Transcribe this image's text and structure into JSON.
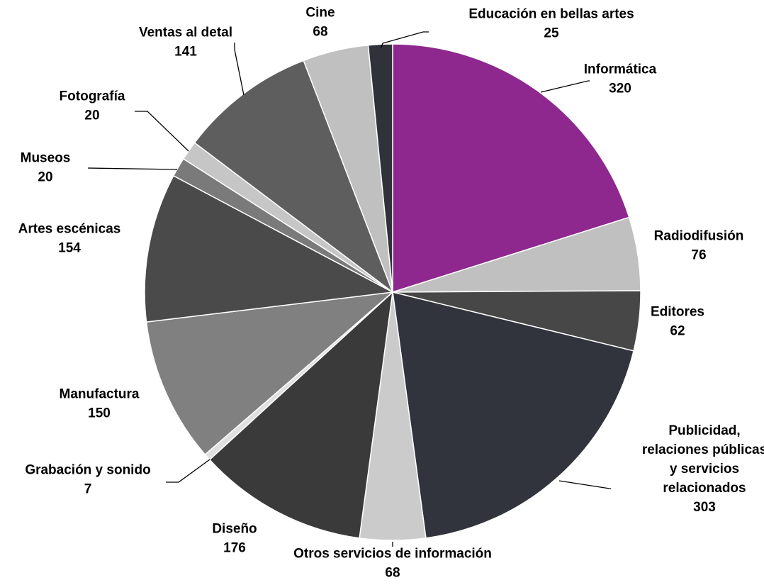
{
  "chart_data": {
    "type": "pie",
    "title": "",
    "slices": [
      {
        "label": [
          "Informática"
        ],
        "value": 320,
        "color": "#8e288e"
      },
      {
        "label": [
          "Radiodifusión"
        ],
        "value": 76,
        "color": "#c0c0c0"
      },
      {
        "label": [
          "Editores"
        ],
        "value": 62,
        "color": "#474747"
      },
      {
        "label": [
          "Publicidad,",
          "relaciones públicas",
          "y servicios",
          "relacionados"
        ],
        "value": 303,
        "color": "#31343d"
      },
      {
        "label": [
          "Otros servicios de información"
        ],
        "value": 68,
        "color": "#cbcbcb"
      },
      {
        "label": [
          "Diseño"
        ],
        "value": 176,
        "color": "#3a3a3a"
      },
      {
        "label": [
          "Grabación y sonido"
        ],
        "value": 7,
        "color": "#e0e0e0"
      },
      {
        "label": [
          "Manufactura"
        ],
        "value": 150,
        "color": "#808080"
      },
      {
        "label": [
          "Artes escénicas"
        ],
        "value": 154,
        "color": "#4a4a4a"
      },
      {
        "label": [
          "Museos"
        ],
        "value": 20,
        "color": "#7a7a7a"
      },
      {
        "label": [
          "Fotografía"
        ],
        "value": 20,
        "color": "#c6c6c6"
      },
      {
        "label": [
          "Ventas al detal"
        ],
        "value": 141,
        "color": "#5e5e5e"
      },
      {
        "label": [
          "Cine"
        ],
        "value": 68,
        "color": "#c0c0c0"
      },
      {
        "label": [
          "Educación en bellas artes"
        ],
        "value": 25,
        "color": "#2f3238"
      }
    ]
  }
}
